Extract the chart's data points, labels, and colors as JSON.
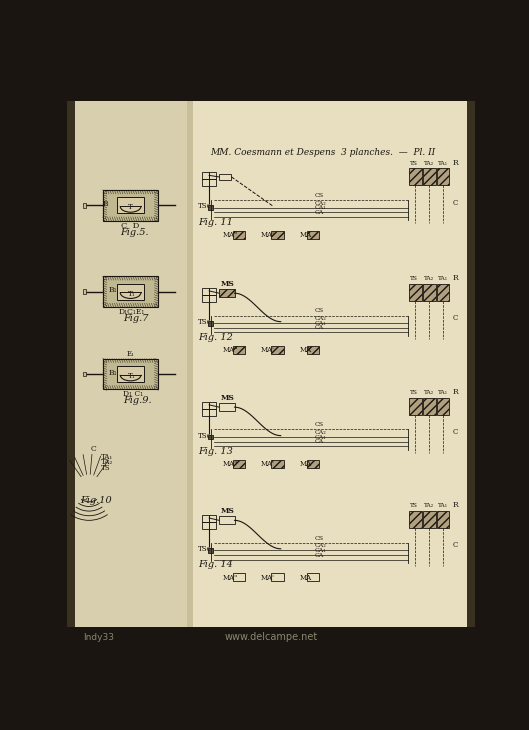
{
  "page_bg": "#e8dfc0",
  "left_bg": "#d8cfae",
  "dark_bg": "#1a1510",
  "line_color": "#1a1510",
  "header_text": "MM. Coesmann et Despens",
  "header_right": "3 planches.  —  Pl. II",
  "watermark": "www.delcampe.net",
  "watermark2": "Indy33",
  "hatch_fill": "#9a8a6a",
  "parchment": "#e2d8b8"
}
